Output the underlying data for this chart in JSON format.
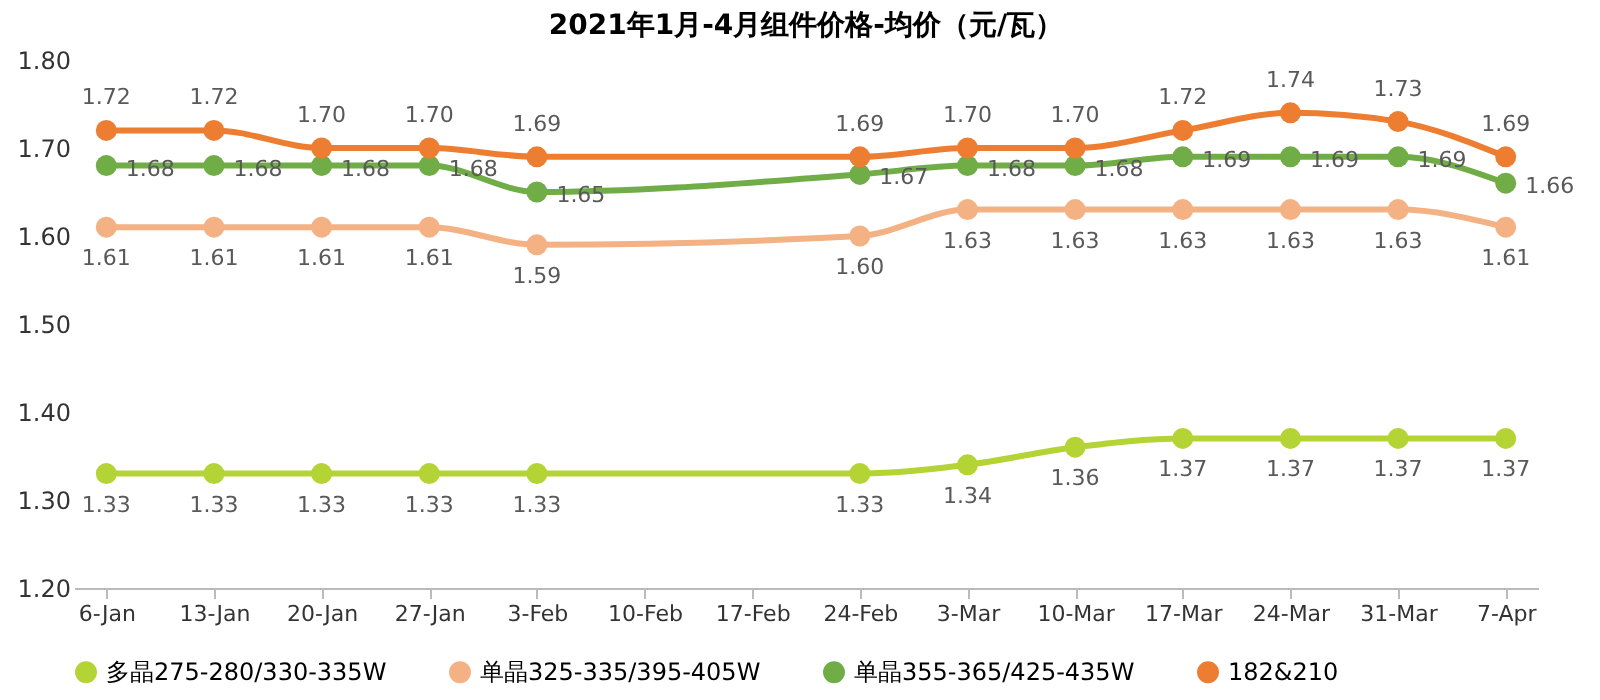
{
  "chart_data": {
    "type": "line",
    "title": "2021年1月-4月组件价格-均价（元/瓦）",
    "categories": [
      "6-Jan",
      "13-Jan",
      "20-Jan",
      "27-Jan",
      "3-Feb",
      "10-Feb",
      "17-Feb",
      "24-Feb",
      "3-Mar",
      "10-Mar",
      "17-Mar",
      "24-Mar",
      "31-Mar",
      "7-Apr"
    ],
    "series": [
      {
        "name": "多晶275-280/330-335W",
        "color": "#b4d335",
        "values": [
          1.33,
          1.33,
          1.33,
          1.33,
          1.33,
          null,
          null,
          1.33,
          1.34,
          1.36,
          1.37,
          1.37,
          1.37,
          1.37
        ],
        "value_labels": [
          "1.33",
          "1.33",
          "1.33",
          "1.33",
          "1.33",
          null,
          null,
          "1.33",
          "1.34",
          "1.36",
          "1.37",
          "1.37",
          "1.37",
          "1.37"
        ]
      },
      {
        "name": "单晶325-335/395-405W",
        "color": "#f4b183",
        "values": [
          1.61,
          1.61,
          1.61,
          1.61,
          1.59,
          null,
          null,
          1.6,
          1.63,
          1.63,
          1.63,
          1.63,
          1.63,
          1.61
        ],
        "value_labels": [
          "1.61",
          "1.61",
          "1.61",
          "1.61",
          "1.59",
          null,
          null,
          "1.60",
          "1.63",
          "1.63",
          "1.63",
          "1.63",
          "1.63",
          "1.61"
        ]
      },
      {
        "name": "单晶355-365/425-435W",
        "color": "#70ad47",
        "values": [
          1.68,
          1.68,
          1.68,
          1.68,
          1.65,
          null,
          null,
          1.67,
          1.68,
          1.68,
          1.69,
          1.69,
          1.69,
          1.66
        ],
        "value_labels": [
          "1.68",
          "1.68",
          "1.68",
          "1.68",
          "1.65",
          null,
          null,
          "1.67",
          "1.68",
          "1.68",
          "1.69",
          "1.69",
          "1.69",
          "1.66"
        ]
      },
      {
        "name": "182&210",
        "color": "#ed7d31",
        "values": [
          1.72,
          1.72,
          1.7,
          1.7,
          1.69,
          null,
          null,
          1.69,
          1.7,
          1.7,
          1.72,
          1.74,
          1.73,
          1.69
        ],
        "value_labels": [
          "1.72",
          "1.72",
          "1.70",
          "1.70",
          "1.69",
          null,
          null,
          "1.69",
          "1.70",
          "1.70",
          "1.72",
          "1.74",
          "1.73",
          "1.69"
        ]
      }
    ],
    "ylim": [
      1.2,
      1.8
    ],
    "yticks": [
      {
        "value": 1.2,
        "label": "1.20"
      },
      {
        "value": 1.3,
        "label": "1.30"
      },
      {
        "value": 1.4,
        "label": "1.40"
      },
      {
        "value": 1.5,
        "label": "1.50"
      },
      {
        "value": 1.6,
        "label": "1.60"
      },
      {
        "value": 1.7,
        "label": "1.70"
      },
      {
        "value": 1.8,
        "label": "1.80"
      }
    ],
    "grid": false,
    "legend": "bottom",
    "marker": "circle",
    "line_style": "solid"
  }
}
